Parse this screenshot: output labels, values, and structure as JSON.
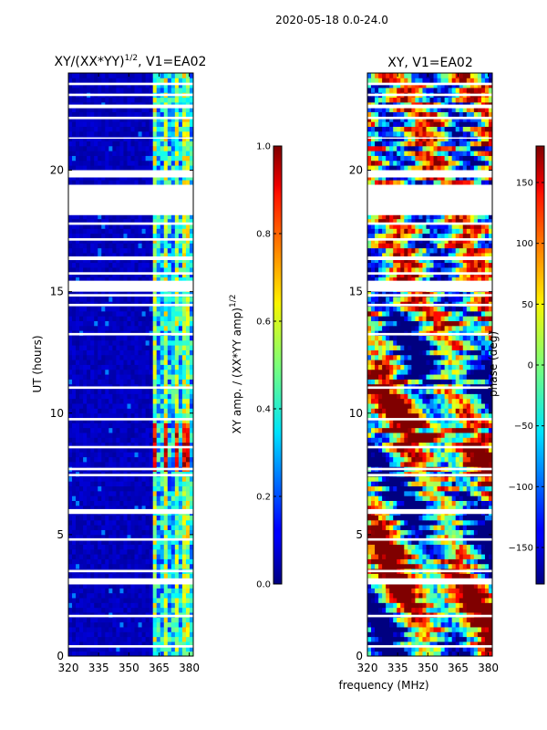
{
  "chart_data": {
    "suptitle": "2020-05-18 0.0-24.0",
    "xlabel": "frequency (MHz)",
    "ylabel": "UT (hours)",
    "x_ticks": [
      320,
      335,
      350,
      365,
      380
    ],
    "y_ticks": [
      0,
      5,
      10,
      15,
      20
    ],
    "xlim": [
      320,
      382
    ],
    "ylim": [
      0,
      24
    ],
    "panels": [
      {
        "type": "heatmap",
        "title_main": "XY/(XX*YY)",
        "title_sup": "1/2",
        "title_tail": ", V1=EA02",
        "colorbar": {
          "label_main": "XY amp. / (XX*YY amp)",
          "label_sup": "1/2",
          "range": [
            0.0,
            1.0
          ],
          "ticks": [
            "0.0",
            "0.2",
            "0.4",
            "0.6",
            "0.8",
            "1.0"
          ],
          "tick_values": [
            0.0,
            0.2,
            0.4,
            0.6,
            0.8,
            1.0
          ]
        }
      },
      {
        "type": "heatmap",
        "title": "XY, V1=EA02",
        "colorbar": {
          "label": "phase (deg)",
          "range": [
            -180,
            180
          ],
          "ticks": [
            "−150",
            "−100",
            "−50",
            "0",
            "50",
            "100",
            "150"
          ],
          "tick_values": [
            -150,
            -100,
            -50,
            0,
            50,
            100,
            150
          ]
        }
      }
    ],
    "gaps_hours": [
      [
        0.35,
        0.45
      ],
      [
        1.6,
        1.7
      ],
      [
        2.95,
        3.2
      ],
      [
        3.45,
        3.55
      ],
      [
        4.75,
        4.85
      ],
      [
        5.85,
        6.05
      ],
      [
        7.4,
        7.5
      ],
      [
        7.65,
        7.75
      ],
      [
        8.55,
        8.65
      ],
      [
        9.7,
        9.8
      ],
      [
        11.0,
        11.1
      ],
      [
        13.2,
        13.3
      ],
      [
        14.4,
        14.5
      ],
      [
        14.8,
        14.9
      ],
      [
        15.0,
        15.45
      ],
      [
        15.7,
        15.8
      ],
      [
        16.3,
        16.45
      ],
      [
        17.1,
        17.2
      ],
      [
        17.75,
        17.85
      ],
      [
        18.15,
        19.4
      ],
      [
        19.7,
        20.0
      ],
      [
        21.3,
        21.35
      ],
      [
        22.1,
        22.2
      ],
      [
        22.55,
        22.7
      ],
      [
        23.05,
        23.15
      ],
      [
        23.5,
        23.6
      ]
    ]
  }
}
